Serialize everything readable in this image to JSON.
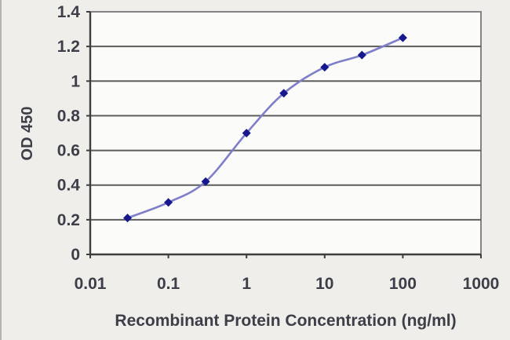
{
  "chart_data": {
    "type": "line",
    "title": "",
    "xlabel": "Recombinant Protein Concentration (ng/ml)",
    "ylabel": "OD 450",
    "x_scale": "log",
    "xlim": [
      0.01,
      1000
    ],
    "ylim": [
      0,
      1.4
    ],
    "grid": true,
    "legend_position": "none",
    "x_tick_labels": [
      "0.01",
      "0.1",
      "1",
      "10",
      "100",
      "1000"
    ],
    "x_tick_values": [
      0.01,
      0.1,
      1,
      10,
      100,
      1000
    ],
    "y_tick_labels": [
      "0",
      "0.2",
      "0.4",
      "0.6",
      "0.8",
      "1",
      "1.2",
      "1.4"
    ],
    "y_tick_values": [
      0,
      0.2,
      0.4,
      0.6,
      0.8,
      1,
      1.2,
      1.4
    ],
    "series": [
      {
        "name": "OD 450",
        "marker": "diamond",
        "line_style": "smooth",
        "x": [
          0.03,
          0.1,
          0.3,
          1,
          3,
          10,
          30,
          100
        ],
        "y": [
          0.21,
          0.3,
          0.42,
          0.7,
          0.93,
          1.08,
          1.15,
          1.25
        ]
      }
    ]
  },
  "colors": {
    "background": "#efeeeb",
    "plot_background": "#fbfbf9",
    "gridline": "#5d5d5d",
    "frame": "#848484",
    "axis": "#3e3e3e",
    "line": "#7e7ec9",
    "marker": "#17178e",
    "text": "#3e3e48"
  }
}
